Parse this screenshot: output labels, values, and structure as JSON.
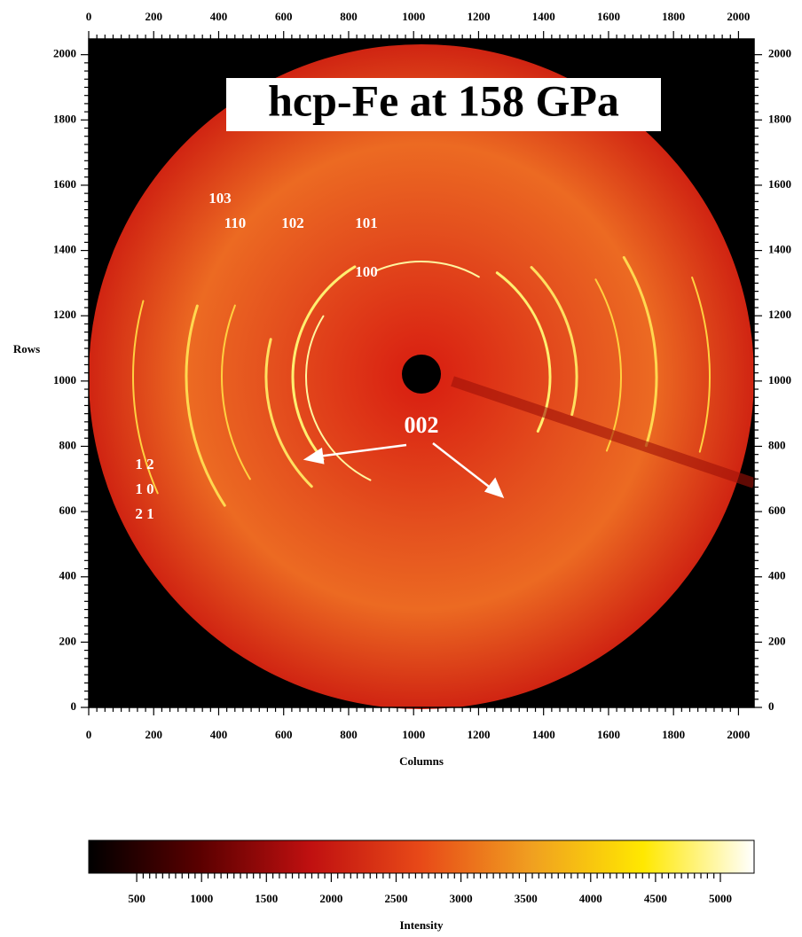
{
  "chart_data": {
    "type": "image",
    "title": "hcp-Fe at 158 GPa",
    "x_label": "Columns",
    "y_label": "Rows",
    "xlim": [
      0,
      2048
    ],
    "ylim": [
      0,
      2048
    ],
    "xticks": [
      0,
      200,
      400,
      600,
      800,
      1000,
      1200,
      1400,
      1600,
      1800,
      2000
    ],
    "yticks": [
      0,
      200,
      400,
      600,
      800,
      1000,
      1200,
      1400,
      1600,
      1800,
      2000
    ],
    "annotations": [
      "103",
      "110",
      "102",
      "101",
      "100",
      "002",
      "1 2",
      "1 0",
      "2 1"
    ],
    "colorbar": {
      "label": "Intensity",
      "clim": [
        130,
        5260
      ],
      "ticks": [
        500,
        1000,
        1500,
        2000,
        2500,
        3000,
        3500,
        4000,
        4500,
        5000
      ],
      "colormap": [
        "#000000",
        "#5a0000",
        "#c01010",
        "#e84a18",
        "#f0a020",
        "#ffe800",
        "#ffffff"
      ]
    }
  }
}
